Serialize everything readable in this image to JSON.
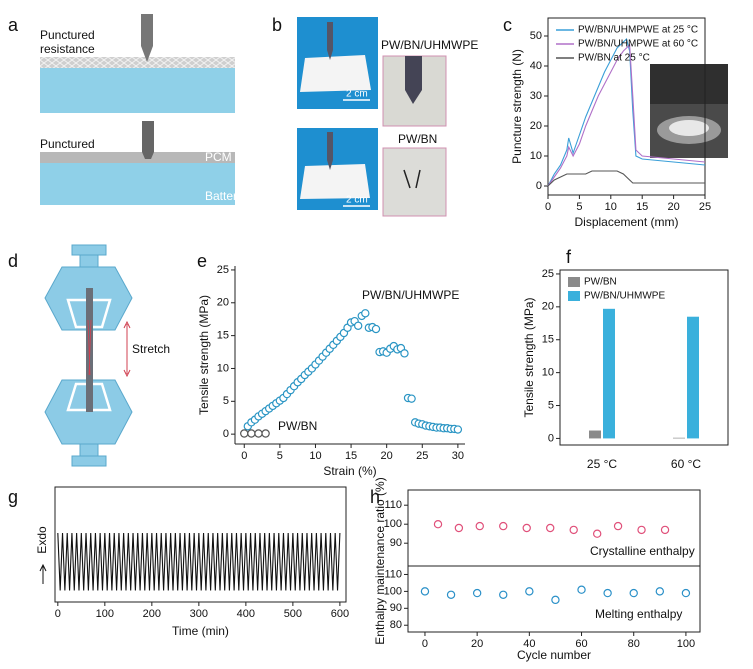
{
  "panel_labels": [
    "a",
    "b",
    "c",
    "d",
    "e",
    "f",
    "g",
    "h"
  ],
  "diagrams": {
    "a": {
      "top_label": [
        "Punctured",
        "resistance"
      ],
      "bottom_label": "Punctured",
      "layer": "PCM",
      "base": "Battery"
    },
    "b": {
      "top_sample": "PW/BN/UHMWPE",
      "top_scale": "2 cm",
      "bottom_sample": "PW/BN",
      "bottom_scale": "2 cm"
    },
    "d": {
      "arrow_label": "Stretch"
    }
  },
  "chart_data": [
    {
      "type": "line",
      "xlabel": "Displacement (mm)",
      "ylabel": "Puncture strength (N)",
      "x": [
        0,
        1,
        2,
        3,
        3.3,
        4,
        5,
        6,
        7,
        8,
        9,
        10,
        11,
        12,
        12.5,
        13,
        13.5,
        14,
        15,
        20,
        25
      ],
      "series": [
        {
          "name": "PW/BN/UHMPWE at 25 °C",
          "color": "#3a9fd8",
          "values": [
            0,
            4,
            7,
            12,
            16,
            11,
            17,
            23,
            28,
            33,
            38,
            42,
            46,
            48,
            49,
            45,
            25,
            10,
            9,
            8,
            7
          ]
        },
        {
          "name": "PW/BN/UHMPWE at 60 °C",
          "color": "#b070c8",
          "values": [
            0,
            3,
            6,
            10,
            13,
            10,
            14,
            20,
            25,
            30,
            34,
            38,
            42,
            45,
            46,
            47,
            30,
            12,
            10,
            9,
            8
          ]
        },
        {
          "name": "PW/BN at 25 °C",
          "color": "#555555",
          "values": [
            0,
            2,
            3,
            4,
            4,
            4,
            4,
            4,
            5,
            5,
            5,
            5,
            5,
            4,
            3,
            2,
            1,
            1,
            1,
            1,
            1
          ]
        }
      ],
      "xlim": [
        0,
        25
      ],
      "ylim": [
        -3,
        56
      ],
      "xticks": [
        0,
        5,
        10,
        15,
        20,
        25
      ],
      "yticks": [
        0,
        10,
        20,
        30,
        40,
        50
      ],
      "legend": "upper left"
    },
    {
      "type": "scatter",
      "xlabel": "Strain (%)",
      "ylabel": "Tensile strength (MPa)",
      "series": [
        {
          "name": "PW/BN/UHMWPE",
          "color": "#2a95c4",
          "x": [
            0.5,
            1,
            1.5,
            2,
            2.5,
            3,
            3.5,
            4,
            4.5,
            5,
            5.5,
            6,
            6.5,
            7,
            7.5,
            8,
            8.5,
            9,
            9.5,
            10,
            10.5,
            11,
            11.5,
            12,
            12.5,
            13,
            13.5,
            14,
            14.5,
            15,
            15.5,
            16,
            16.5,
            17,
            17.5,
            18,
            18.5,
            19,
            19.5,
            20,
            20.5,
            21,
            21.5,
            22,
            22.5,
            23,
            23.5,
            24,
            24.5,
            25,
            25.5,
            26,
            26.5,
            27,
            27.5,
            28,
            28.5,
            29,
            29.5,
            30
          ],
          "values": [
            1.2,
            1.8,
            2.2,
            2.7,
            3.1,
            3.5,
            3.9,
            4.3,
            4.7,
            5.1,
            5.5,
            6.1,
            6.7,
            7.3,
            7.9,
            8.4,
            9.0,
            9.5,
            10.0,
            10.6,
            11.2,
            11.8,
            12.4,
            13.0,
            13.6,
            14.2,
            14.8,
            15.4,
            16.2,
            17.0,
            17.2,
            16.5,
            18.0,
            18.4,
            16.2,
            16.3,
            16.0,
            12.5,
            12.6,
            12.4,
            13.0,
            13.4,
            12.9,
            13.1,
            12.3,
            5.5,
            5.4,
            1.8,
            1.6,
            1.5,
            1.3,
            1.2,
            1.1,
            1.0,
            1.0,
            0.9,
            0.9,
            0.8,
            0.8,
            0.7
          ]
        },
        {
          "name": "PW/BN",
          "color": "#555555",
          "x": [
            0,
            1,
            2,
            3
          ],
          "values": [
            0.1,
            0.1,
            0.1,
            0.1
          ]
        }
      ],
      "xlim": [
        -1.3,
        31
      ],
      "ylim": [
        -1.5,
        25.6
      ],
      "xticks": [
        0,
        5,
        10,
        15,
        20,
        25,
        30
      ],
      "yticks": [
        0,
        5,
        10,
        15,
        20,
        25
      ]
    },
    {
      "type": "bar",
      "ylabel": "Tensile strength (MPa)",
      "categories": [
        "25 °C",
        "60 °C"
      ],
      "series": [
        {
          "name": "PW/BN",
          "color": "#8a8a8a",
          "values": [
            1.2,
            0.1
          ]
        },
        {
          "name": "PW/BN/UHMWPE",
          "color": "#3ab0dc",
          "values": [
            19.7,
            18.5
          ]
        }
      ],
      "ylim": [
        -1,
        25.6
      ],
      "yticks": [
        0,
        5,
        10,
        15,
        20,
        25
      ],
      "legend": "upper left"
    },
    {
      "type": "line",
      "xlabel": "Time (min)",
      "ylabel": "Exdo",
      "color": "#111111",
      "x": [
        0,
        5,
        10,
        15,
        20,
        25,
        30,
        35,
        40,
        45,
        50,
        55,
        60,
        65,
        70,
        75,
        80,
        85,
        90,
        95,
        100,
        105,
        110,
        115,
        120,
        125,
        130,
        135,
        140,
        145,
        150,
        155,
        160,
        165,
        170,
        175,
        180,
        185,
        190,
        195,
        200,
        205,
        210,
        215,
        220,
        225,
        230,
        235,
        240,
        245,
        250,
        255,
        260,
        265,
        270,
        275,
        280,
        285,
        290,
        295,
        300,
        305,
        310,
        315,
        320,
        325,
        330,
        335,
        340,
        345,
        350,
        355,
        360,
        365,
        370,
        375,
        380,
        385,
        390,
        395,
        400,
        405,
        410,
        415,
        420,
        425,
        430,
        435,
        440,
        445,
        450,
        455,
        460,
        465,
        470,
        475,
        480,
        485,
        490,
        495,
        500,
        505,
        510,
        515,
        520,
        525,
        530,
        535,
        540,
        545,
        550,
        555,
        560,
        565,
        570,
        575,
        580,
        585,
        590,
        595,
        600
      ],
      "values": [
        0.6,
        0.1,
        0.6,
        0.1,
        0.6,
        0.1,
        0.6,
        0.1,
        0.6,
        0.1,
        0.6,
        0.1,
        0.6,
        0.1,
        0.6,
        0.1,
        0.6,
        0.1,
        0.6,
        0.1,
        0.6,
        0.1,
        0.6,
        0.1,
        0.6,
        0.1,
        0.6,
        0.1,
        0.6,
        0.1,
        0.6,
        0.1,
        0.6,
        0.1,
        0.6,
        0.1,
        0.6,
        0.1,
        0.6,
        0.1,
        0.6,
        0.1,
        0.6,
        0.1,
        0.6,
        0.1,
        0.6,
        0.1,
        0.6,
        0.1,
        0.6,
        0.1,
        0.6,
        0.1,
        0.6,
        0.1,
        0.6,
        0.1,
        0.6,
        0.1,
        0.6,
        0.1,
        0.6,
        0.1,
        0.6,
        0.1,
        0.6,
        0.1,
        0.6,
        0.1,
        0.6,
        0.1,
        0.6,
        0.1,
        0.6,
        0.1,
        0.6,
        0.1,
        0.6,
        0.1,
        0.6,
        0.1,
        0.6,
        0.1,
        0.6,
        0.1,
        0.6,
        0.1,
        0.6,
        0.1,
        0.6,
        0.1,
        0.6,
        0.1,
        0.6,
        0.1,
        0.6,
        0.1,
        0.6,
        0.1,
        0.6,
        0.1,
        0.6,
        0.1,
        0.6,
        0.1,
        0.6,
        0.1,
        0.6,
        0.1,
        0.6,
        0.1,
        0.6,
        0.1,
        0.6,
        0.1,
        0.6,
        0.1,
        0.6,
        0.1,
        0.6
      ],
      "xlim": [
        -6,
        613
      ],
      "ylim": [
        0,
        1
      ],
      "xticks": [
        0,
        100,
        200,
        300,
        400,
        500,
        600
      ]
    },
    {
      "type": "scatter",
      "series": [
        {
          "name": "Crystalline enthalpy",
          "color": "#e0507a",
          "x": [
            5,
            13,
            21,
            30,
            39,
            48,
            57,
            66,
            74,
            83,
            92
          ],
          "values": [
            100,
            98,
            99,
            99,
            98,
            98,
            97,
            95,
            99,
            97,
            97
          ]
        }
      ],
      "xlim": [
        -6.5,
        105.4
      ],
      "ylim": [
        78,
        118
      ],
      "yticks": [
        90,
        100,
        110
      ]
    },
    {
      "type": "scatter",
      "xlabel": "Cycle number",
      "ylabel": "Enthalpy maintenance ratio (%)",
      "series": [
        {
          "name": "Melting enthalpy",
          "color": "#2a90c8",
          "x": [
            0,
            10,
            20,
            30,
            40,
            50,
            60,
            70,
            80,
            90,
            100
          ],
          "values": [
            100,
            98,
            99,
            98,
            100,
            95,
            101,
            99,
            99,
            100,
            99
          ]
        }
      ],
      "xlim": [
        -6.5,
        105.4
      ],
      "ylim": [
        76,
        115
      ],
      "xticks": [
        0,
        20,
        40,
        60,
        80,
        100
      ],
      "yticks": [
        80,
        90,
        100,
        110
      ]
    }
  ]
}
